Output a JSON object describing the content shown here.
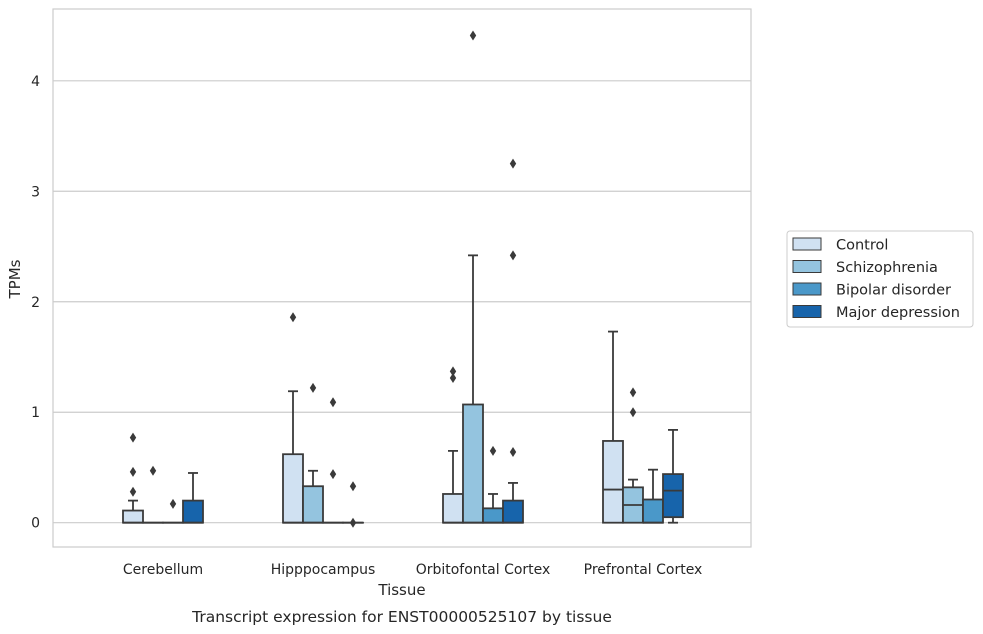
{
  "chart_data": {
    "type": "boxplot",
    "title": "",
    "caption": "Transcript expression for ENST00000525107 by tissue",
    "xlabel": "Tissue",
    "ylabel": "TPMs",
    "ylim": [
      -0.22,
      4.65
    ],
    "yticks": [
      0,
      1,
      2,
      3,
      4
    ],
    "grid": "horizontal",
    "legend_position": "right",
    "categories": [
      "Cerebellum",
      "Hipppocampus",
      "Orbitofontal Cortex",
      "Prefrontal Cortex"
    ],
    "series": [
      {
        "name": "Control",
        "color": "#d0e1f2",
        "boxes": [
          {
            "q1": 0,
            "median": 0,
            "q3": 0.11,
            "whislo": 0,
            "whishi": 0.2,
            "fliers": [
              0.28,
              0.46,
              0.77
            ]
          },
          {
            "q1": 0,
            "median": 0,
            "q3": 0.62,
            "whislo": 0,
            "whishi": 1.19,
            "fliers": [
              1.86
            ]
          },
          {
            "q1": 0,
            "median": 0,
            "q3": 0.26,
            "whislo": 0,
            "whishi": 0.65,
            "fliers": [
              1.31,
              1.37
            ]
          },
          {
            "q1": 0,
            "median": 0.3,
            "q3": 0.74,
            "whislo": 0,
            "whishi": 1.73,
            "fliers": []
          }
        ]
      },
      {
        "name": "Schizophrenia",
        "color": "#94c4df",
        "boxes": [
          {
            "q1": 0,
            "median": 0,
            "q3": 0,
            "whislo": 0,
            "whishi": 0,
            "fliers": [
              0.47
            ]
          },
          {
            "q1": 0,
            "median": 0,
            "q3": 0.33,
            "whislo": 0,
            "whishi": 0.47,
            "fliers": [
              1.22
            ]
          },
          {
            "q1": 0,
            "median": 0,
            "q3": 1.07,
            "whislo": 0,
            "whishi": 2.42,
            "fliers": [
              4.41
            ]
          },
          {
            "q1": 0,
            "median": 0.16,
            "q3": 0.32,
            "whislo": 0,
            "whishi": 0.39,
            "fliers": [
              1.0,
              1.18
            ]
          }
        ]
      },
      {
        "name": "Bipolar disorder",
        "color": "#4a98c9",
        "boxes": [
          {
            "q1": 0,
            "median": 0,
            "q3": 0,
            "whislo": 0,
            "whishi": 0,
            "fliers": [
              0.17
            ]
          },
          {
            "q1": 0,
            "median": 0,
            "q3": 0,
            "whislo": 0,
            "whishi": 0,
            "fliers": [
              0.44,
              1.09
            ]
          },
          {
            "q1": 0,
            "median": 0,
            "q3": 0.13,
            "whislo": 0,
            "whishi": 0.26,
            "fliers": [
              0.65
            ]
          },
          {
            "q1": 0,
            "median": 0,
            "q3": 0.21,
            "whislo": 0,
            "whishi": 0.48,
            "fliers": []
          }
        ]
      },
      {
        "name": "Major depression",
        "color": "#1764ab",
        "boxes": [
          {
            "q1": 0,
            "median": 0,
            "q3": 0.2,
            "whislo": 0,
            "whishi": 0.45,
            "fliers": []
          },
          {
            "q1": 0,
            "median": 0,
            "q3": 0,
            "whislo": 0,
            "whishi": 0,
            "fliers": [
              0.0,
              0.33
            ]
          },
          {
            "q1": 0,
            "median": 0,
            "q3": 0.2,
            "whislo": 0,
            "whishi": 0.36,
            "fliers": [
              0.64,
              2.42,
              3.25
            ]
          },
          {
            "q1": 0.05,
            "median": 0.29,
            "q3": 0.44,
            "whislo": 0,
            "whishi": 0.84,
            "fliers": []
          }
        ]
      }
    ]
  }
}
